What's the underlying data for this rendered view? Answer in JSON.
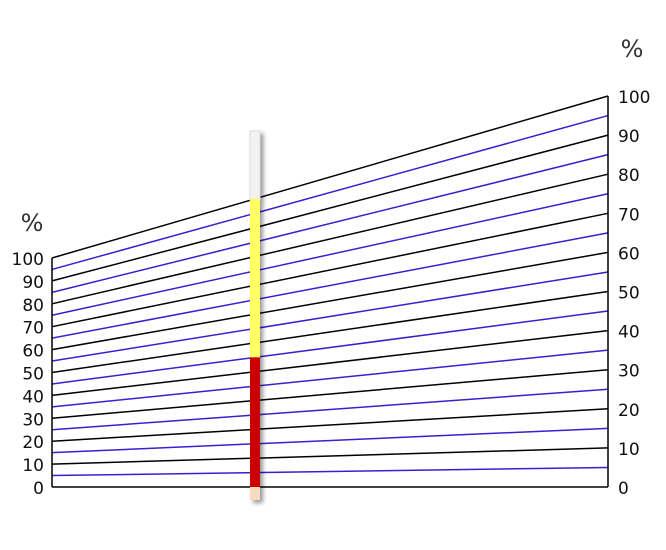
{
  "left_axis": {
    "label": "%",
    "ticks": [
      0,
      10,
      20,
      30,
      40,
      50,
      60,
      70,
      80,
      90,
      100
    ]
  },
  "right_axis": {
    "label": "%",
    "ticks": [
      0,
      10,
      20,
      30,
      40,
      50,
      60,
      70,
      80,
      90,
      100
    ]
  },
  "bar_segments": [
    {
      "color": "#cc0000",
      "value": 45
    },
    {
      "color": "#ffff66",
      "value": 55
    }
  ]
}
